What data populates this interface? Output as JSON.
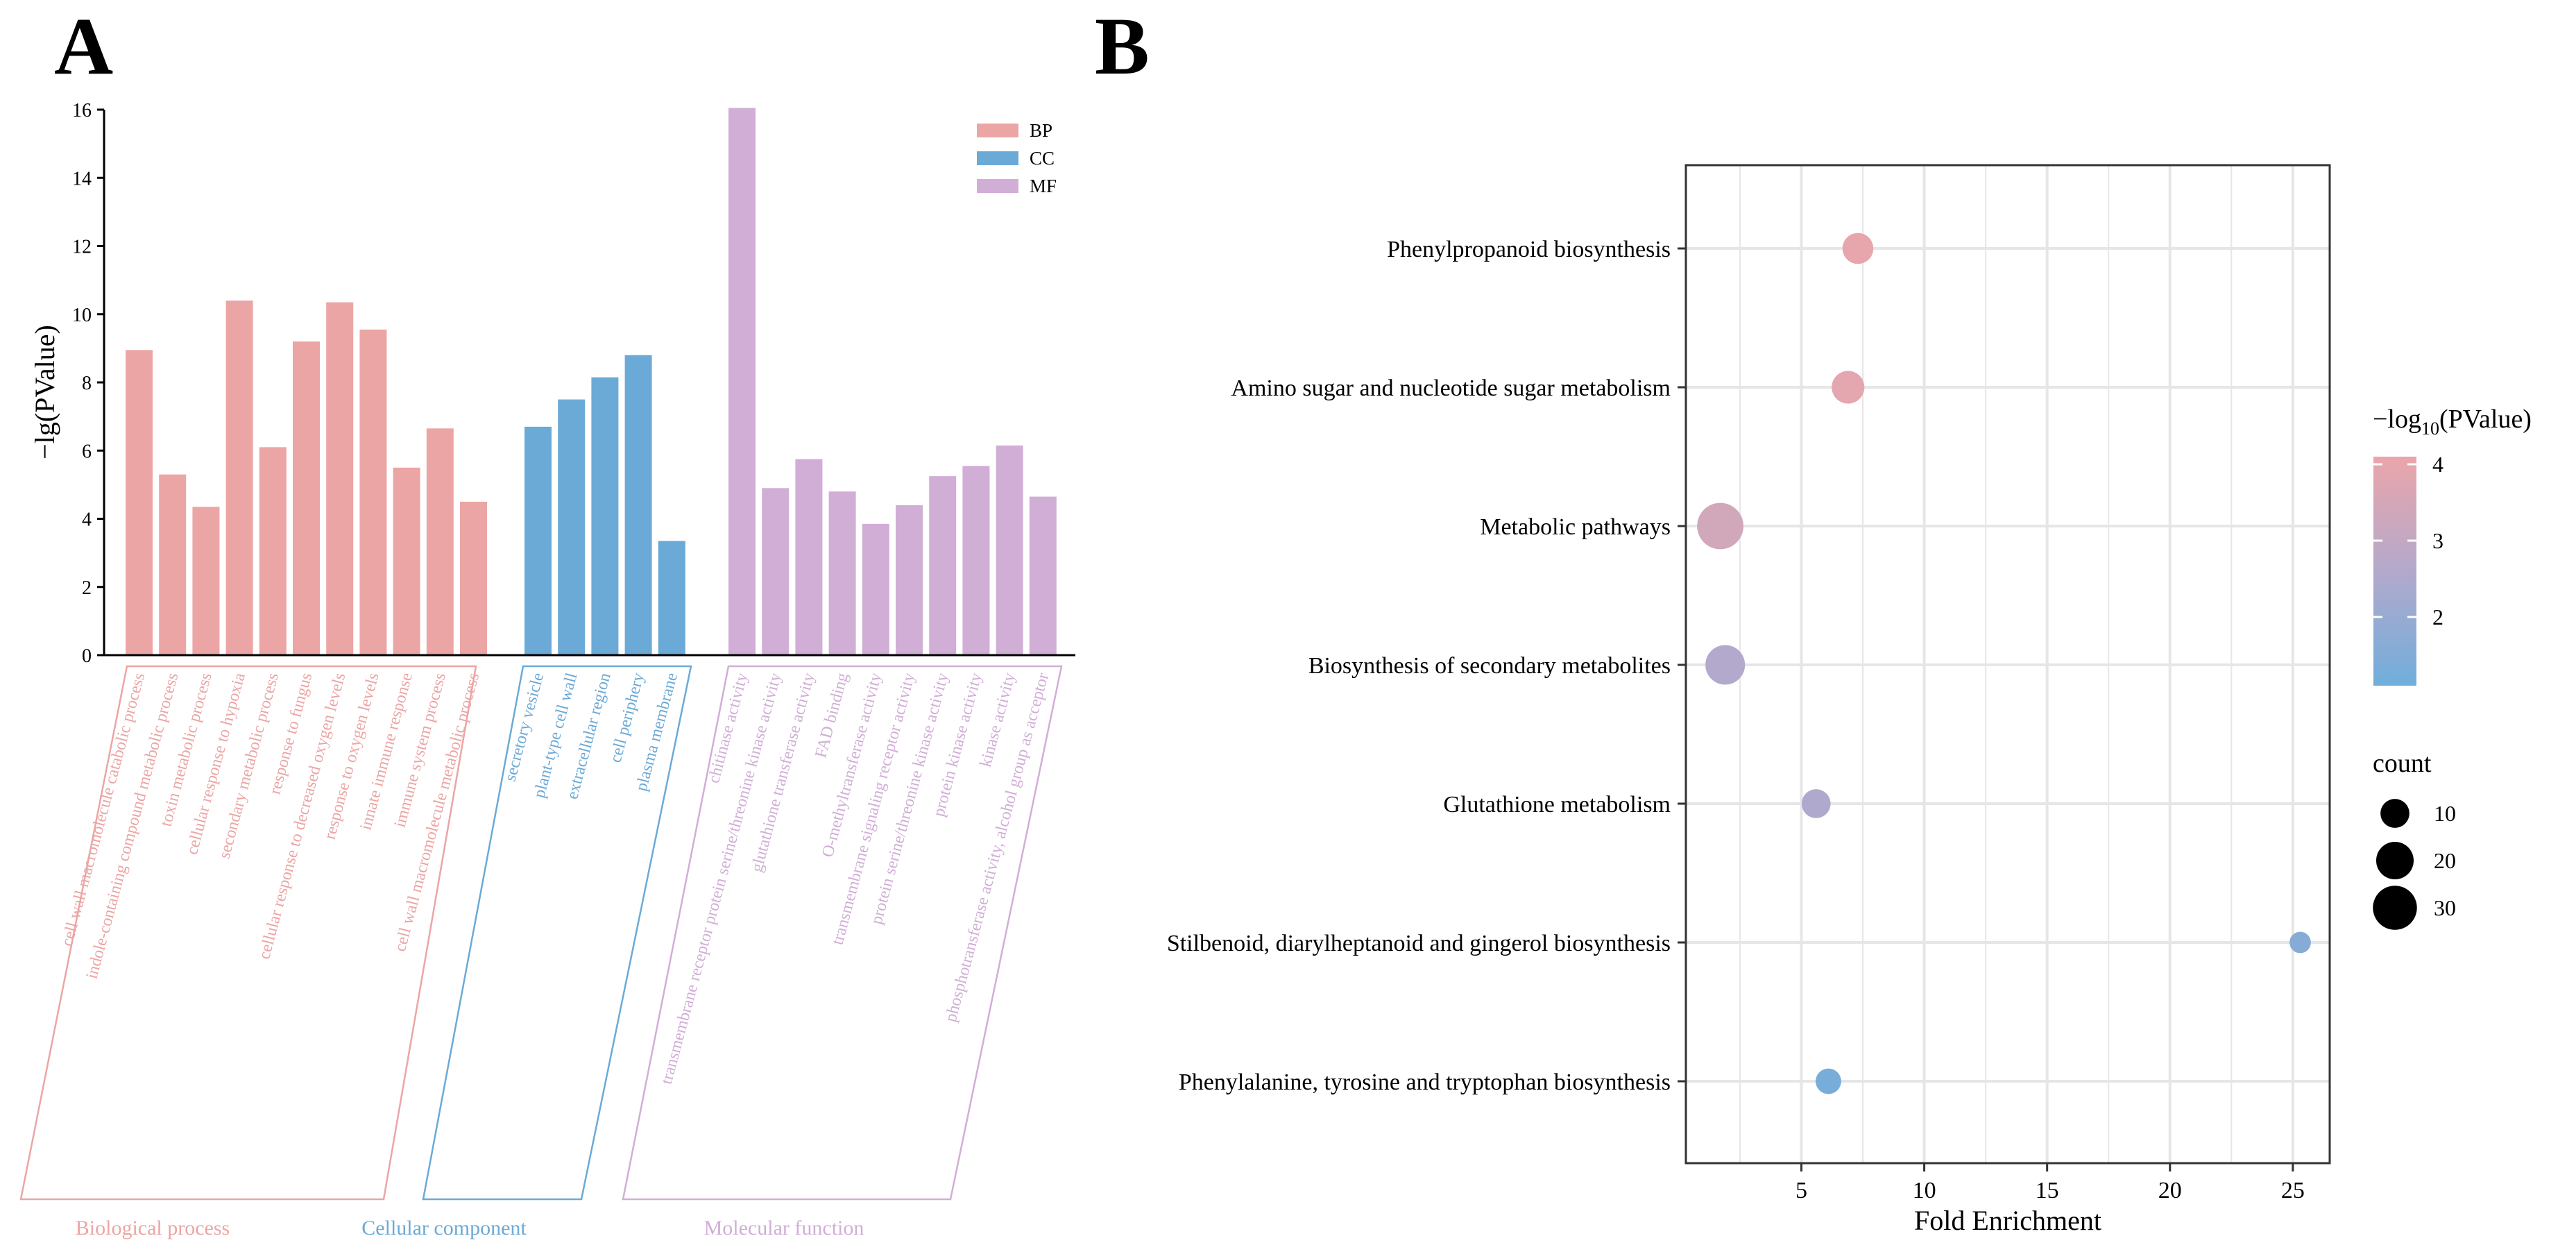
{
  "colors": {
    "bp": "#ECA5A5",
    "cc": "#6BAAD6",
    "mf": "#D1AED6",
    "axis": "#000000",
    "grid": "#E6E6E6",
    "low": "#70AEDB",
    "high": "#EBA5AA"
  },
  "panel_a": {
    "letter": "A",
    "legend": {
      "bp": "BP",
      "cc": "CC",
      "mf": "MF"
    },
    "groups": {
      "bp": "Biological process",
      "cc": "Cellular component",
      "mf": "Molecular function"
    }
  },
  "panel_b": {
    "letter": "B",
    "color_legend_title": "−log",
    "color_legend_sub": "10",
    "color_legend_suffix": "(PValue)",
    "size_legend_title": "count"
  },
  "chart_data": [
    {
      "type": "bar",
      "title": "",
      "xlabel": "",
      "ylabel": "−lg(PValue)",
      "ylim": [
        0,
        16
      ],
      "yticks": [
        0,
        2,
        4,
        6,
        8,
        10,
        12,
        14,
        16
      ],
      "series": [
        {
          "name": "BP",
          "categories": [
            "cell wall macromolecule catabolic process",
            "indole-containing compound metabolic process",
            "toxin metabolic process",
            "cellular response to hypoxia",
            "secondary metabolic process",
            "response to fungus",
            "cellular response to decreased oxygen levels",
            "response to oxygen levels",
            "innate immune response",
            "immune system process",
            "cell wall macromolecule metabolic process"
          ],
          "values": [
            8.95,
            5.3,
            4.35,
            10.4,
            6.1,
            9.2,
            10.35,
            9.55,
            5.5,
            6.65,
            4.5
          ]
        },
        {
          "name": "CC",
          "categories": [
            "secretory vesicle",
            "plant-type cell wall",
            "extracellular region",
            "cell periphery",
            "plasma membrane"
          ],
          "values": [
            6.7,
            7.5,
            8.15,
            8.8,
            3.35
          ]
        },
        {
          "name": "MF",
          "categories": [
            "chitinase activity",
            "transmembrane receptor protein serine/threonine kinase activity",
            "glutathione transferase activity",
            "FAD binding",
            "O-methyltransferase activity",
            "transmembrane signaling receptor activity",
            "protein serine/threonine kinase activity",
            "protein kinase activity",
            "kinase activity",
            "phosphotransferase activity, alcohol group as acceptor"
          ],
          "values": [
            16.05,
            4.9,
            5.75,
            4.8,
            3.85,
            4.4,
            5.25,
            5.55,
            6.15,
            4.65
          ]
        }
      ]
    },
    {
      "type": "scatter",
      "title": "",
      "xlabel": "Fold Enrichment",
      "ylabel": "",
      "xlim": [
        0.3,
        26.5
      ],
      "xticks": [
        5,
        10,
        15,
        20,
        25
      ],
      "color_range": [
        1.1,
        4.1
      ],
      "color_ticks": [
        2,
        3,
        4
      ],
      "size_legend": [
        10,
        20,
        30
      ],
      "points": [
        {
          "term": "Phenylpropanoid biosynthesis",
          "fold_enrichment": 7.3,
          "neg_log10_p": 4.0,
          "count": 12
        },
        {
          "term": "Amino sugar and nucleotide sugar metabolism",
          "fold_enrichment": 6.9,
          "neg_log10_p": 3.9,
          "count": 14
        },
        {
          "term": "Metabolic pathways",
          "fold_enrichment": 1.7,
          "neg_log10_p": 3.4,
          "count": 34
        },
        {
          "term": "Biosynthesis of secondary metabolites",
          "fold_enrichment": 1.9,
          "neg_log10_p": 2.6,
          "count": 23
        },
        {
          "term": "Glutathione metabolism",
          "fold_enrichment": 5.6,
          "neg_log10_p": 2.5,
          "count": 10
        },
        {
          "term": "Stilbenoid, diarylheptanoid and gingerol biosynthesis",
          "fold_enrichment": 25.3,
          "neg_log10_p": 1.6,
          "count": 4
        },
        {
          "term": "Phenylalanine, tyrosine and tryptophan biosynthesis",
          "fold_enrichment": 6.1,
          "neg_log10_p": 1.3,
          "count": 7
        }
      ]
    }
  ]
}
